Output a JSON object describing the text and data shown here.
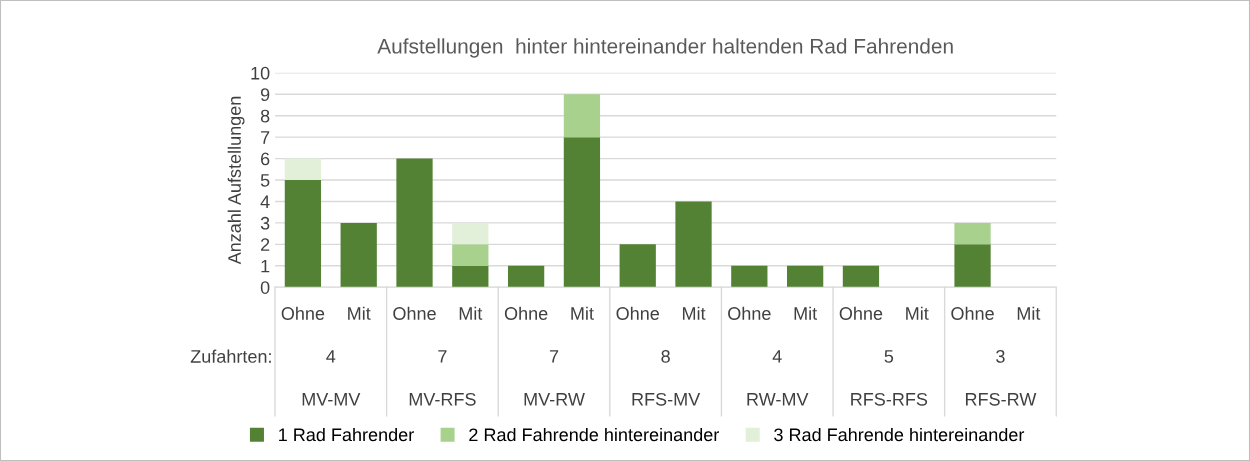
{
  "chart_data": {
    "type": "bar",
    "stacked": true,
    "title": "Aufstellungen  hinter hintereinander haltenden Rad Fahrenden",
    "ylabel": "Anzahl Aufstellungen",
    "categories": [
      "Ohne",
      "Mit",
      "Ohne",
      "Mit",
      "Ohne",
      "Mit",
      "Ohne",
      "Mit",
      "Ohne",
      "Mit",
      "Ohne",
      "Mit",
      "Ohne",
      "Mit"
    ],
    "series": [
      {
        "name": "1 Rad Fahrender",
        "color": "#548235",
        "values": [
          5,
          3,
          6,
          1,
          1,
          7,
          2,
          4,
          1,
          1,
          1,
          0,
          2,
          0
        ]
      },
      {
        "name": "2 Rad Fahrende hintereinander",
        "color": "#a9d18e",
        "values": [
          0,
          0,
          0,
          1,
          0,
          2,
          0,
          0,
          0,
          0,
          0,
          0,
          1,
          0
        ]
      },
      {
        "name": "3 Rad Fahrende hintereinander",
        "color": "#e2efd9",
        "values": [
          1,
          0,
          0,
          1,
          0,
          0,
          0,
          0,
          0,
          0,
          0,
          0,
          0,
          0
        ]
      }
    ],
    "annotations": [
      "Zufahrten:",
      "4",
      "7",
      "7",
      "8",
      "4",
      "5",
      "3",
      "MV-MV",
      "MV-RFS",
      "MV-RW",
      "RFS-MV",
      "RW-MV",
      "RFS-RFS",
      "RFS-RW"
    ],
    "ylim": [
      0,
      10
    ],
    "yticks": [
      0,
      1,
      2,
      3,
      4,
      5,
      6,
      7,
      8,
      9,
      10
    ],
    "grid": "y",
    "legend": "bottom"
  }
}
